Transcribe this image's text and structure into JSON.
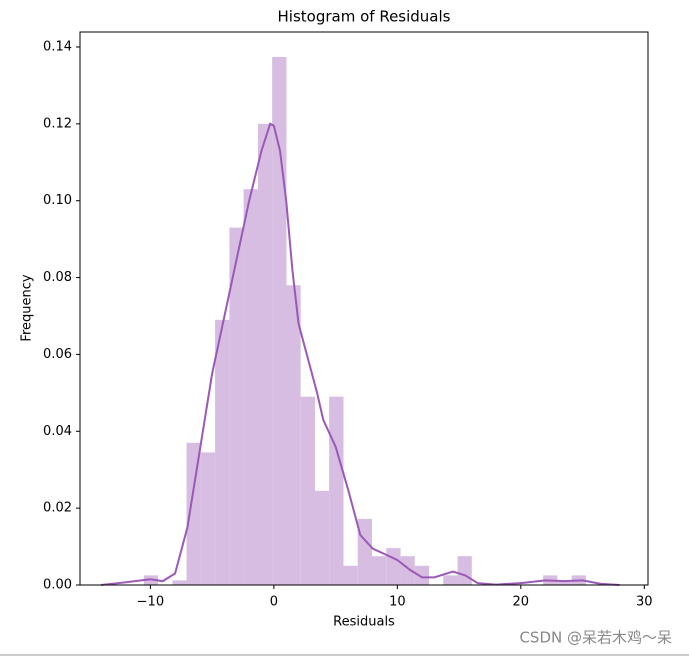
{
  "chart_data": {
    "type": "histogram",
    "title": "Histogram of Residuals",
    "x_label": "Residuals",
    "y_label": "Frequency",
    "bins": [
      -10.53,
      -9.38,
      -8.22,
      -7.07,
      -5.91,
      -4.76,
      -3.6,
      -2.45,
      -1.29,
      -0.14,
      1.02,
      2.17,
      3.33,
      4.48,
      5.64,
      6.79,
      7.95,
      9.1,
      10.26,
      11.41,
      12.57,
      13.72,
      14.88,
      16.03,
      17.19,
      18.34,
      19.5,
      20.65,
      21.81,
      22.96,
      24.12,
      25.27
    ],
    "values": [
      0.0025,
      0,
      0.0012,
      0.037,
      0.0345,
      0.069,
      0.093,
      0.103,
      0.12,
      0.1374,
      0.078,
      0.049,
      0.0245,
      0.049,
      0.005,
      0.0172,
      0.0075,
      0.0096,
      0.0075,
      0.005,
      0,
      0.0025,
      0.0075,
      0,
      0,
      0,
      0,
      0,
      0.0025,
      0.0008,
      0.0025
    ],
    "color": "#d7bde2",
    "kde": {
      "color": "#9b59b6",
      "x": [
        -14,
        -12,
        -10,
        -9,
        -8,
        -7,
        -6,
        -5,
        -4,
        -3,
        -2,
        -1,
        -0.3,
        0,
        0.5,
        1,
        1.5,
        2,
        3,
        3.5,
        4,
        5,
        6,
        7,
        8,
        9,
        10,
        11,
        12,
        13,
        14.5,
        15.5,
        16.5,
        18,
        20,
        22,
        23.5,
        25,
        26.5,
        28
      ],
      "values": [
        0,
        0.0007,
        0.0015,
        0.001,
        0.003,
        0.015,
        0.035,
        0.055,
        0.07,
        0.085,
        0.1,
        0.113,
        0.12,
        0.1195,
        0.113,
        0.1,
        0.082,
        0.068,
        0.056,
        0.05,
        0.043,
        0.036,
        0.025,
        0.013,
        0.0095,
        0.008,
        0.0065,
        0.004,
        0.002,
        0.002,
        0.0035,
        0.0025,
        0.0005,
        0.0001,
        0.0005,
        0.0012,
        0.001,
        0.0012,
        0.0003,
        0
      ]
    },
    "xlim": [
      -15.7,
      30.3
    ],
    "ylim": [
      0,
      0.1439
    ],
    "xticks": [
      {
        "value": -10,
        "label": "−10"
      },
      0,
      10,
      20,
      30
    ],
    "yticks": [
      {
        "value": 0,
        "label": "0.00"
      },
      {
        "value": 0.02,
        "label": "0.02"
      },
      {
        "value": 0.04,
        "label": "0.04"
      },
      {
        "value": 0.06,
        "label": "0.06"
      },
      {
        "value": 0.08,
        "label": "0.08"
      },
      {
        "value": 0.1,
        "label": "0.10"
      },
      {
        "value": 0.12,
        "label": "0.12"
      },
      {
        "value": 0.14,
        "label": "0.14"
      }
    ],
    "grid": false
  },
  "watermark": "CSDN @呆若木鸡～呆"
}
